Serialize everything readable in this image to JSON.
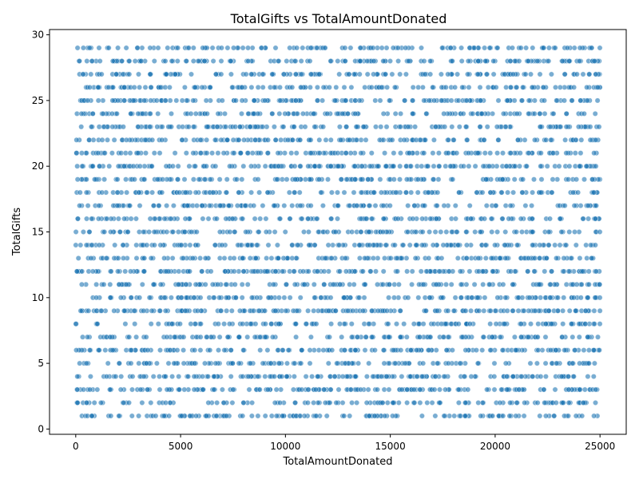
{
  "chart_data": {
    "type": "scatter",
    "title": "TotalGifts vs TotalAmountDonated",
    "xlabel": "TotalAmountDonated",
    "ylabel": "TotalGifts",
    "xlim": [
      -1250,
      26250
    ],
    "ylim": [
      -0.4,
      30.4
    ],
    "xticks": [
      0,
      5000,
      10000,
      15000,
      20000,
      25000
    ],
    "yticks": [
      0,
      5,
      10,
      15,
      20,
      25,
      30
    ],
    "x_range": [
      0,
      25000
    ],
    "y_integer_values": [
      1,
      29
    ],
    "point_count": 4000,
    "sampling": "dense scatter, x uniform over 0–25000, y integers 1–29",
    "color": "#1f77b4",
    "alpha": 0.6,
    "grid": false,
    "legend": "none"
  }
}
